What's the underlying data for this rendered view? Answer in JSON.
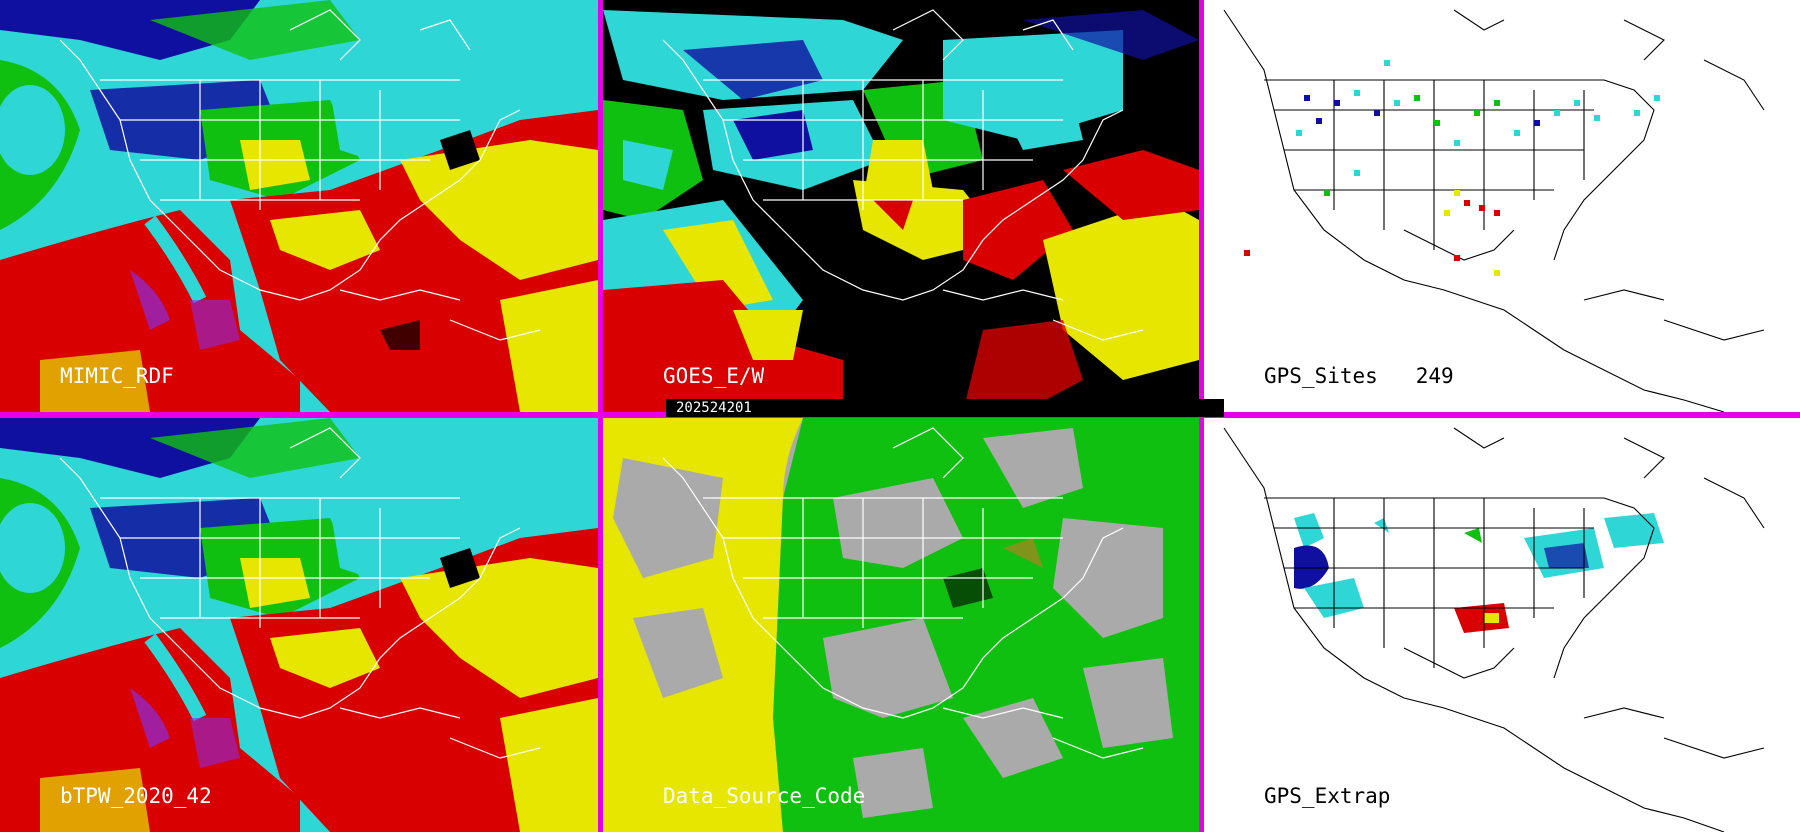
{
  "panels": {
    "top_left": {
      "label": "MIMIC_RDF"
    },
    "top_middle": {
      "label": "GOES_E/W"
    },
    "top_right": {
      "label": "GPS_Sites",
      "count": "249"
    },
    "bottom_left": {
      "label": "bTPW_2020_42"
    },
    "bottom_middle": {
      "label": "Data_Source_Code"
    },
    "bottom_right": {
      "label": "GPS_Extrap"
    }
  },
  "timestamp": "202524201",
  "colors": {
    "border": "#e600e6",
    "cyan": "#2fd6d6",
    "blue": "#1010a0",
    "green": "#10c010",
    "yellow": "#e6e600",
    "red": "#d80000",
    "purple": "#8a2be2",
    "gray": "#aaaaaa",
    "black": "#000000"
  }
}
